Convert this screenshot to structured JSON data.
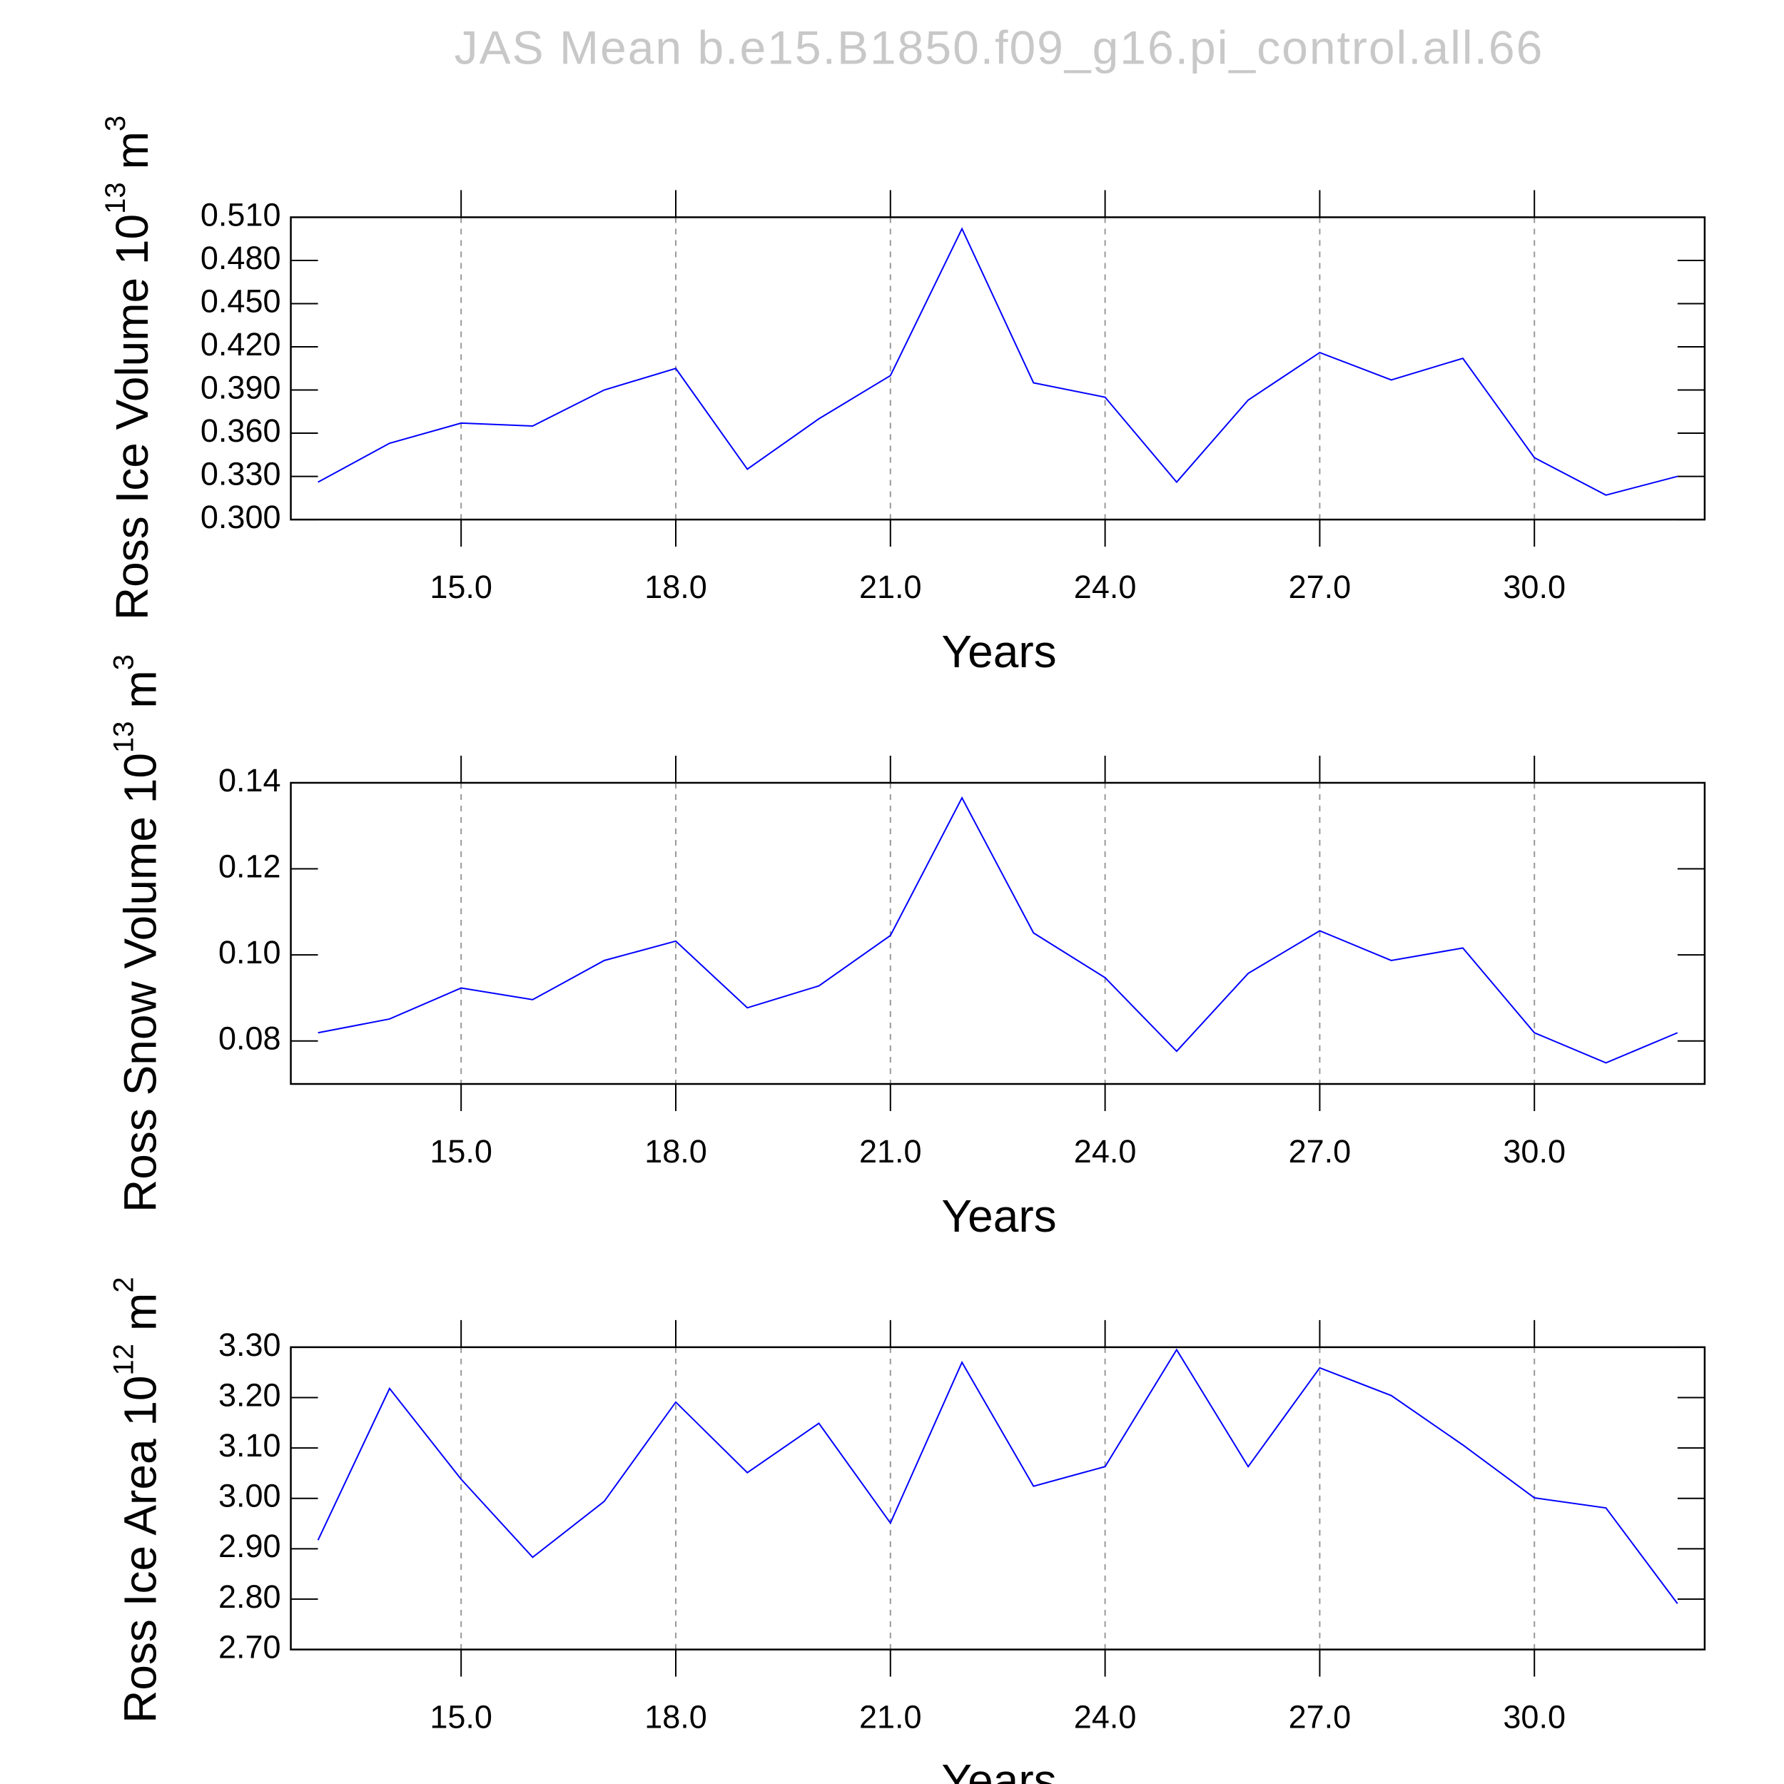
{
  "title": "JAS  Mean  b.e15.B1850.f09_g16.pi_control.all.66",
  "chart_data": [
    {
      "type": "line",
      "x_label": "Years",
      "y_label": {
        "text": "Ross Ice Volume 10",
        "exponent": "13",
        "unit": "m",
        "unit_exponent": "3"
      },
      "x": [
        13,
        14,
        15,
        16,
        17,
        18,
        19,
        20,
        21,
        22,
        23,
        24,
        25,
        26,
        27,
        28,
        29,
        30,
        31,
        32
      ],
      "series": [
        {
          "color": "#0000ff",
          "values": [
            0.326,
            0.353,
            0.367,
            0.365,
            0.39,
            0.405,
            0.335,
            0.37,
            0.4,
            0.502,
            0.395,
            0.385,
            0.326,
            0.383,
            0.416,
            0.397,
            0.412,
            0.343,
            0.317,
            0.33
          ]
        }
      ],
      "xlim": [
        12.62,
        32.38
      ],
      "xticks": [
        {
          "value": 15,
          "label": "15.0"
        },
        {
          "value": 18,
          "label": "18.0"
        },
        {
          "value": 21,
          "label": "21.0"
        },
        {
          "value": 24,
          "label": "24.0"
        },
        {
          "value": 27,
          "label": "27.0"
        },
        {
          "value": 30,
          "label": "30.0"
        }
      ],
      "ylim": [
        0.3,
        0.51
      ],
      "yticks": [
        {
          "value": 0.3,
          "label": "0.300"
        },
        {
          "value": 0.33,
          "label": "0.330"
        },
        {
          "value": 0.36,
          "label": "0.360"
        },
        {
          "value": 0.39,
          "label": "0.390"
        },
        {
          "value": 0.42,
          "label": "0.420"
        },
        {
          "value": 0.45,
          "label": "0.450"
        },
        {
          "value": 0.48,
          "label": "0.480"
        },
        {
          "value": 0.51,
          "label": "0.510"
        }
      ],
      "grid": true
    },
    {
      "type": "line",
      "x_label": "Years",
      "y_label": {
        "text": "Ross Snow Volume 10",
        "exponent": "13",
        "unit": "m",
        "unit_exponent": "3"
      },
      "x": [
        13,
        14,
        15,
        16,
        17,
        18,
        19,
        20,
        21,
        22,
        23,
        24,
        25,
        26,
        27,
        28,
        29,
        30,
        31,
        32
      ],
      "series": [
        {
          "color": "#0000ff",
          "values": [
            0.0819,
            0.0851,
            0.0923,
            0.0896,
            0.0987,
            0.1032,
            0.0877,
            0.0928,
            0.1045,
            0.1365,
            0.1051,
            0.0947,
            0.0776,
            0.0957,
            0.1056,
            0.0987,
            0.1016,
            0.0819,
            0.0749,
            0.0819
          ]
        }
      ],
      "xlim": [
        12.62,
        32.38
      ],
      "xticks": [
        {
          "value": 15,
          "label": "15.0"
        },
        {
          "value": 18,
          "label": "18.0"
        },
        {
          "value": 21,
          "label": "21.0"
        },
        {
          "value": 24,
          "label": "24.0"
        },
        {
          "value": 27,
          "label": "27.0"
        },
        {
          "value": 30,
          "label": "30.0"
        }
      ],
      "ylim": [
        0.07,
        0.14
      ],
      "yticks": [
        0.08,
        0.12,
        0.14,
        {
          "value": 0.1,
          "label": "0.10"
        }
      ],
      "grid": true
    },
    {
      "type": "line",
      "x_label": "Years",
      "y_label": {
        "text": "Ross Ice Area 10",
        "exponent": "12",
        "unit": "m",
        "unit_exponent": "2"
      },
      "x": [
        13,
        14,
        15,
        16,
        17,
        18,
        19,
        20,
        21,
        22,
        23,
        24,
        25,
        26,
        27,
        28,
        29,
        30,
        31,
        32
      ],
      "series": [
        {
          "color": "#0000ff",
          "values": [
            2.917,
            3.218,
            3.038,
            2.883,
            2.994,
            3.191,
            3.051,
            3.149,
            2.951,
            3.27,
            3.024,
            3.063,
            3.295,
            3.063,
            3.259,
            3.204,
            3.106,
            3.001,
            2.981,
            2.791
          ]
        }
      ],
      "xlim": [
        12.62,
        32.38
      ],
      "xticks": [
        {
          "value": 15,
          "label": "15.0"
        },
        {
          "value": 18,
          "label": "18.0"
        },
        {
          "value": 21,
          "label": "21.0"
        },
        {
          "value": 24,
          "label": "24.0"
        },
        {
          "value": 27,
          "label": "27.0"
        },
        {
          "value": 30,
          "label": "30.0"
        }
      ],
      "ylim": [
        2.7,
        3.3
      ],
      "yticks": [
        {
          "value": 2.7,
          "label": "2.70"
        },
        {
          "value": 2.8,
          "label": "2.80"
        },
        {
          "value": 2.9,
          "label": "2.90"
        },
        {
          "value": 3.0,
          "label": "3.00"
        },
        {
          "value": 3.1,
          "label": "3.10"
        },
        {
          "value": 3.2,
          "label": "3.20"
        },
        {
          "value": 3.3,
          "label": "3.30"
        }
      ],
      "grid": true
    }
  ]
}
